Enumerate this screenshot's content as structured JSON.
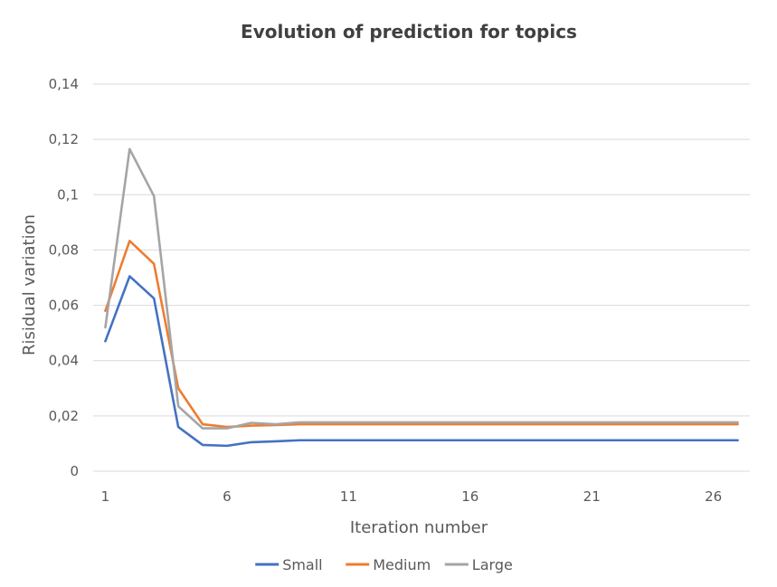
{
  "chart_data": {
    "type": "line",
    "title": "Evolution of prediction for topics",
    "xlabel": "Iteration number",
    "ylabel": "Risidual variation",
    "x": [
      1,
      2,
      3,
      4,
      5,
      6,
      7,
      8,
      9,
      10,
      11,
      12,
      13,
      14,
      15,
      16,
      17,
      18,
      19,
      20,
      21,
      22,
      23,
      24,
      25,
      26,
      27
    ],
    "x_tick_labels": [
      "1",
      "6",
      "11",
      "16",
      "21",
      "26"
    ],
    "x_tick_values": [
      1,
      6,
      11,
      16,
      21,
      26
    ],
    "y_tick_labels": [
      "0",
      "0,02",
      "0,04",
      "0,06",
      "0,08",
      "0,1",
      "0,12",
      "0,14"
    ],
    "y_tick_values": [
      0,
      0.02,
      0.04,
      0.06,
      0.08,
      0.1,
      0.12,
      0.14
    ],
    "xlim": [
      0.5,
      27.5
    ],
    "ylim": [
      0,
      0.14
    ],
    "grid": true,
    "legend_position": "bottom",
    "series": [
      {
        "name": "Small",
        "color": "#4472c4",
        "values": [
          0.047,
          0.0705,
          0.0625,
          0.016,
          0.0095,
          0.0092,
          0.0105,
          0.0108,
          0.0112,
          0.0112,
          0.0112,
          0.0112,
          0.0112,
          0.0112,
          0.0112,
          0.0112,
          0.0112,
          0.0112,
          0.0112,
          0.0112,
          0.0112,
          0.0112,
          0.0112,
          0.0112,
          0.0112,
          0.0112,
          0.0112
        ]
      },
      {
        "name": "Medium",
        "color": "#ed7d31",
        "values": [
          0.058,
          0.0833,
          0.075,
          0.03,
          0.017,
          0.016,
          0.0165,
          0.0167,
          0.017,
          0.017,
          0.017,
          0.017,
          0.017,
          0.017,
          0.017,
          0.017,
          0.017,
          0.017,
          0.017,
          0.017,
          0.017,
          0.017,
          0.017,
          0.017,
          0.017,
          0.017,
          0.017
        ]
      },
      {
        "name": "Large",
        "color": "#a5a5a5",
        "values": [
          0.052,
          0.1165,
          0.0995,
          0.0235,
          0.0155,
          0.0155,
          0.0175,
          0.017,
          0.0177,
          0.0177,
          0.0177,
          0.0177,
          0.0177,
          0.0177,
          0.0177,
          0.0177,
          0.0177,
          0.0177,
          0.0177,
          0.0177,
          0.0177,
          0.0177,
          0.0177,
          0.0177,
          0.0177,
          0.0177,
          0.0177
        ]
      }
    ]
  }
}
